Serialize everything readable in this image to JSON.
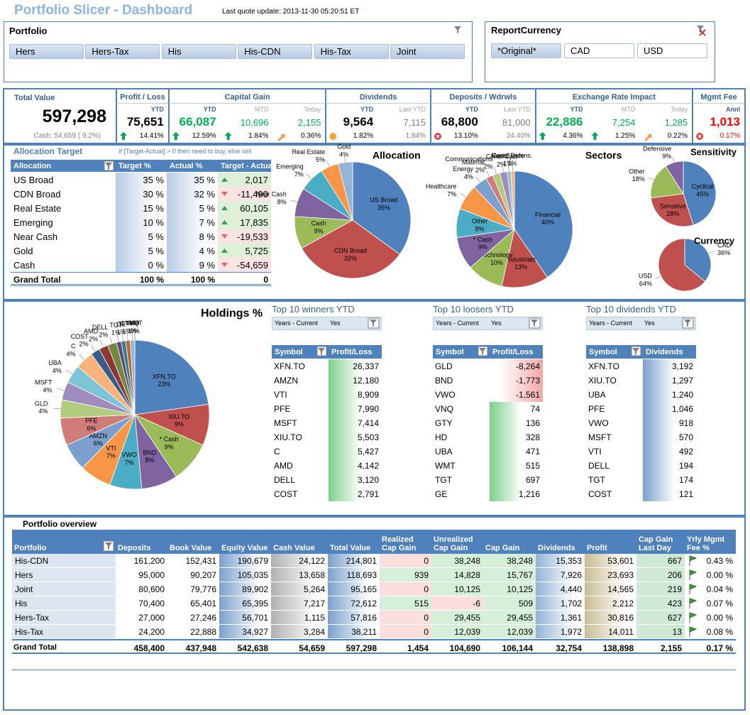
{
  "header": {
    "title": "Portfolio Slicer - Dashboard",
    "last_update": "Last quote update: 2013-11-30 05:20:51 ET"
  },
  "portfolio_slicer": {
    "title": "Portfolio",
    "items": [
      "Hers",
      "Hers-Tax",
      "His",
      "His-CDN",
      "His-Tax",
      "Joint"
    ],
    "selected": [
      true,
      true,
      true,
      true,
      true,
      true
    ]
  },
  "currency_slicer": {
    "title": "ReportCurrency",
    "items": [
      "*Original*",
      "CAD",
      "USD"
    ],
    "selected": [
      true,
      false,
      false
    ]
  },
  "kpis": {
    "total": {
      "title": "Total Value",
      "value": "597,298",
      "cash": "Cash: 54,659 ( 9.2%)"
    },
    "groups": [
      {
        "title": "Profit / Loss",
        "cols": [
          {
            "period": "YTD",
            "value": "75,651",
            "pct": "14.41%",
            "color": "#000000",
            "icon": "up"
          }
        ]
      },
      {
        "title": "Capital Gain",
        "cols": [
          {
            "period": "YTD",
            "value": "66,087",
            "pct": "12.59%",
            "color": "#00b050",
            "icon": "up"
          },
          {
            "period": "MTD",
            "value": "10,696",
            "pct": "1.84%",
            "color": "#00b050",
            "icon": "up"
          },
          {
            "period": "Today",
            "value": "2,155",
            "pct": "0.36%",
            "color": "#00b050",
            "icon": "diag"
          }
        ]
      },
      {
        "title": "Dividends",
        "cols": [
          {
            "period": "YTD",
            "value": "9,564",
            "pct": "1.82%",
            "color": "#000000",
            "icon": "circle"
          },
          {
            "period": "Last YTD",
            "value": "7,115",
            "pct": "1.84%",
            "color": "#808080"
          }
        ]
      },
      {
        "title": "Deposits / Wdrwls",
        "cols": [
          {
            "period": "YTD",
            "value": "68,800",
            "pct": "13.10%",
            "color": "#000000",
            "icon": "x"
          },
          {
            "period": "Last YTD",
            "value": "81,000",
            "pct": "24.40%",
            "color": "#808080"
          }
        ]
      },
      {
        "title": "Exchange Rate Impact",
        "cols": [
          {
            "period": "YTD",
            "value": "22,886",
            "pct": "4.36%",
            "color": "#00b050",
            "icon": "up"
          },
          {
            "period": "MTD",
            "value": "7,254",
            "pct": "1.25%",
            "color": "#00b050",
            "icon": "up"
          },
          {
            "period": "Today",
            "value": "1,285",
            "pct": "0.22%",
            "color": "#00b050",
            "icon": "diag"
          }
        ]
      },
      {
        "title": "Mgmt Fee",
        "cols": [
          {
            "period": "Annl",
            "value": "1,013",
            "pct": "0.17%",
            "color": "#ff0000",
            "icon": "x"
          }
        ]
      }
    ]
  },
  "allocation_target": {
    "title": "Allocation Target",
    "note": "If [Target-Actual] > 0 then need to buy, else sell",
    "columns": [
      "Allocation",
      "Target %",
      "Actual %",
      "Target - Actual"
    ],
    "rows": [
      [
        "US Broad",
        "35 %",
        "35 %",
        "2,017"
      ],
      [
        "CDN Broad",
        "30 %",
        "32 %",
        "-11,490"
      ],
      [
        "Real Estate",
        "15 %",
        "5 %",
        "60,105"
      ],
      [
        "Emerging",
        "10 %",
        "7 %",
        "17,835"
      ],
      [
        "Near Cash",
        "5 %",
        "8 %",
        "-19,533"
      ],
      [
        "Gold",
        "5 %",
        "4 %",
        "5,725"
      ],
      [
        "Cash",
        "0 %",
        "9 %",
        "-54,659"
      ]
    ],
    "trend": [
      "up",
      "down",
      "up",
      "up",
      "down",
      "up",
      "down"
    ],
    "total": [
      "Grand Total",
      "100 %",
      "100 %",
      "0"
    ]
  },
  "allocation_chart": {
    "type": "pie",
    "title": "Allocation",
    "categories": [
      "US Broad",
      "CDN Broad",
      "Cash",
      "Near Cash",
      "Emerging",
      "Real Estate",
      "Gold"
    ],
    "values": [
      35,
      32,
      9,
      8,
      7,
      5,
      4
    ],
    "value_labels": [
      "35%",
      "32%",
      "9%",
      "8%",
      "7%",
      "5%",
      "4%"
    ],
    "colors": [
      "#4f81bd",
      "#c0504d",
      "#9bbb59",
      "#8064a2",
      "#4bacc6",
      "#f79646",
      "#95b3d7"
    ]
  },
  "sectors_chart": {
    "type": "pie",
    "title": "Sectors",
    "categories": [
      "Financial",
      "Industrials",
      "Technology",
      "* Cash",
      "Other",
      "Healthcare",
      "Energy",
      "Material",
      "Communications",
      "Cons. Cycl",
      "Real Estate",
      "Cons. Defens."
    ],
    "values": [
      40,
      13,
      10,
      9,
      8,
      7,
      4,
      2,
      2,
      2,
      1,
      1
    ],
    "value_labels": [
      "40%",
      "13%",
      "10%",
      "9%",
      "8%",
      "7%",
      "4%",
      "2%",
      "2%",
      "2%",
      "1%",
      "1%"
    ],
    "colors": [
      "#4f81bd",
      "#c0504d",
      "#9bbb59",
      "#8064a2",
      "#4bacc6",
      "#f79646",
      "#7ba0cd",
      "#d07c79",
      "#b3cd7e",
      "#a08cbd",
      "#7fc3d6",
      "#f9b27a"
    ]
  },
  "sensitivity_chart": {
    "type": "pie",
    "title": "Sensitivity",
    "categories": [
      "Cyclical",
      "Sensitive",
      "Other",
      "Defensive"
    ],
    "values": [
      45,
      28,
      18,
      9
    ],
    "value_labels": [
      "45%",
      "28%",
      "18%",
      "9%"
    ],
    "colors": [
      "#4f81bd",
      "#c0504d",
      "#9bbb59",
      "#8064a2"
    ]
  },
  "currency_chart": {
    "type": "pie",
    "title": "Currency",
    "categories": [
      "CAD",
      "USD"
    ],
    "values": [
      36,
      64
    ],
    "value_labels": [
      "36%",
      "64%"
    ],
    "colors": [
      "#4f81bd",
      "#c0504d"
    ]
  },
  "holdings_chart": {
    "type": "pie",
    "title": "Holdings %",
    "categories": [
      "XFN.TO",
      "XIU.TO",
      "* Cash",
      "BND",
      "VWO",
      "VTI",
      "AMZN",
      "PFE",
      "GLD",
      "MSFT",
      "UBA",
      "C",
      "COST",
      "AMD",
      "DELL",
      "TGT",
      "GE",
      "GTY",
      "VNQ",
      "HD",
      "WMT"
    ],
    "values": [
      23,
      9,
      9,
      8,
      7,
      7,
      6,
      6,
      4,
      4,
      4,
      4,
      2,
      2,
      2,
      1,
      1,
      1,
      1,
      0,
      0
    ],
    "value_labels": [
      "23%",
      "9%",
      "9%",
      "8%",
      "7%",
      "7%",
      "6%",
      "6%",
      "4%",
      "4%",
      "4%",
      "4%",
      "2%",
      "2%",
      "2%",
      "1%",
      "1%",
      "1%",
      "1%",
      "0%",
      "0%"
    ],
    "colors": [
      "#4f81bd",
      "#c0504d",
      "#9bbb59",
      "#8064a2",
      "#4bacc6",
      "#f79646",
      "#7ba0cd",
      "#d07c79",
      "#b3cd7e",
      "#a08cbd",
      "#7fc3d6",
      "#f9b27a",
      "#385d8a",
      "#8c3836",
      "#71893f",
      "#5c4776",
      "#357d91",
      "#b66d31",
      "#95b3d7",
      "#d99694",
      "#c3d69b"
    ]
  },
  "top_winners": {
    "title": "Top 10 winners YTD",
    "filter_label": "Years - Current",
    "filter_value": "Yes",
    "columns": [
      "Symbol",
      "Profit/Loss"
    ],
    "rows": [
      [
        "XFN.TO",
        "26,337"
      ],
      [
        "AMZN",
        "12,180"
      ],
      [
        "VTI",
        "8,909"
      ],
      [
        "PFE",
        "7,990"
      ],
      [
        "MSFT",
        "7,414"
      ],
      [
        "XIU.TO",
        "5,503"
      ],
      [
        "C",
        "5,427"
      ],
      [
        "AMD",
        "4,142"
      ],
      [
        "DELL",
        "3,120"
      ],
      [
        "COST",
        "2,791"
      ]
    ]
  },
  "top_losers": {
    "title": "Top 10 loosers YTD",
    "filter_label": "Years - Current",
    "filter_value": "Yes",
    "columns": [
      "Symbol",
      "Profit/Loss"
    ],
    "rows": [
      [
        "GLD",
        "-8,264"
      ],
      [
        "BND",
        "-1,773"
      ],
      [
        "VWO",
        "-1,561"
      ],
      [
        "VNQ",
        "74"
      ],
      [
        "GTY",
        "136"
      ],
      [
        "HD",
        "328"
      ],
      [
        "UBA",
        "471"
      ],
      [
        "WMT",
        "515"
      ],
      [
        "TGT",
        "697"
      ],
      [
        "GE",
        "1,216"
      ]
    ]
  },
  "top_dividends": {
    "title": "Top 10 dividends YTD",
    "filter_label": "Years - Current",
    "filter_value": "Yes",
    "columns": [
      "Symbol",
      "Dividends"
    ],
    "rows": [
      [
        "XFN.TO",
        "3,192"
      ],
      [
        "XIU.TO",
        "1,297"
      ],
      [
        "UBA",
        "1,240"
      ],
      [
        "PFE",
        "1,046"
      ],
      [
        "VWO",
        "918"
      ],
      [
        "MSFT",
        "570"
      ],
      [
        "VTI",
        "492"
      ],
      [
        "DELL",
        "194"
      ],
      [
        "TGT",
        "174"
      ],
      [
        "COST",
        "121"
      ]
    ]
  },
  "portfolio_overview": {
    "title": "Portfolio overview",
    "columns": [
      "Portfolio",
      "Deposits",
      "Book Value",
      "Equity Value",
      "Cash Value",
      "Total Value",
      "Realized Cap Gain",
      "Unrealized Cap Gain",
      "Cap Gain",
      "Dividends",
      "Profit",
      "Cap Gain Last Day",
      "Yrly Mgmt Fee %"
    ],
    "rows": [
      [
        "His-CDN",
        "161,200",
        "152,431",
        "190,679",
        "24,122",
        "214,801",
        "0",
        "38,248",
        "38,248",
        "15,353",
        "53,601",
        "667",
        "0.43 %"
      ],
      [
        "Hers",
        "95,000",
        "90,207",
        "105,035",
        "13,658",
        "118,693",
        "939",
        "14,828",
        "15,767",
        "7,926",
        "23,693",
        "206",
        "0.00 %"
      ],
      [
        "Joint",
        "80,600",
        "79,776",
        "89,902",
        "5,264",
        "95,165",
        "0",
        "10,125",
        "10,125",
        "4,440",
        "14,565",
        "219",
        "0.04 %"
      ],
      [
        "His",
        "70,400",
        "65,401",
        "65,395",
        "7,217",
        "72,612",
        "515",
        "-6",
        "509",
        "1,702",
        "2,212",
        "423",
        "0.07 %"
      ],
      [
        "Hers-Tax",
        "27,000",
        "27,246",
        "56,701",
        "1,115",
        "57,816",
        "0",
        "29,455",
        "29,455",
        "1,361",
        "30,816",
        "627",
        "0.00 %"
      ],
      [
        "His-Tax",
        "24,200",
        "22,888",
        "34,927",
        "3,284",
        "38,211",
        "0",
        "12,039",
        "12,039",
        "1,972",
        "14,011",
        "13",
        "0.08 %"
      ]
    ],
    "total": [
      "Grand Total",
      "458,400",
      "437,948",
      "542,638",
      "54,659",
      "597,298",
      "1,454",
      "104,690",
      "106,144",
      "32,754",
      "138,898",
      "2,155",
      "0.17 %"
    ]
  }
}
